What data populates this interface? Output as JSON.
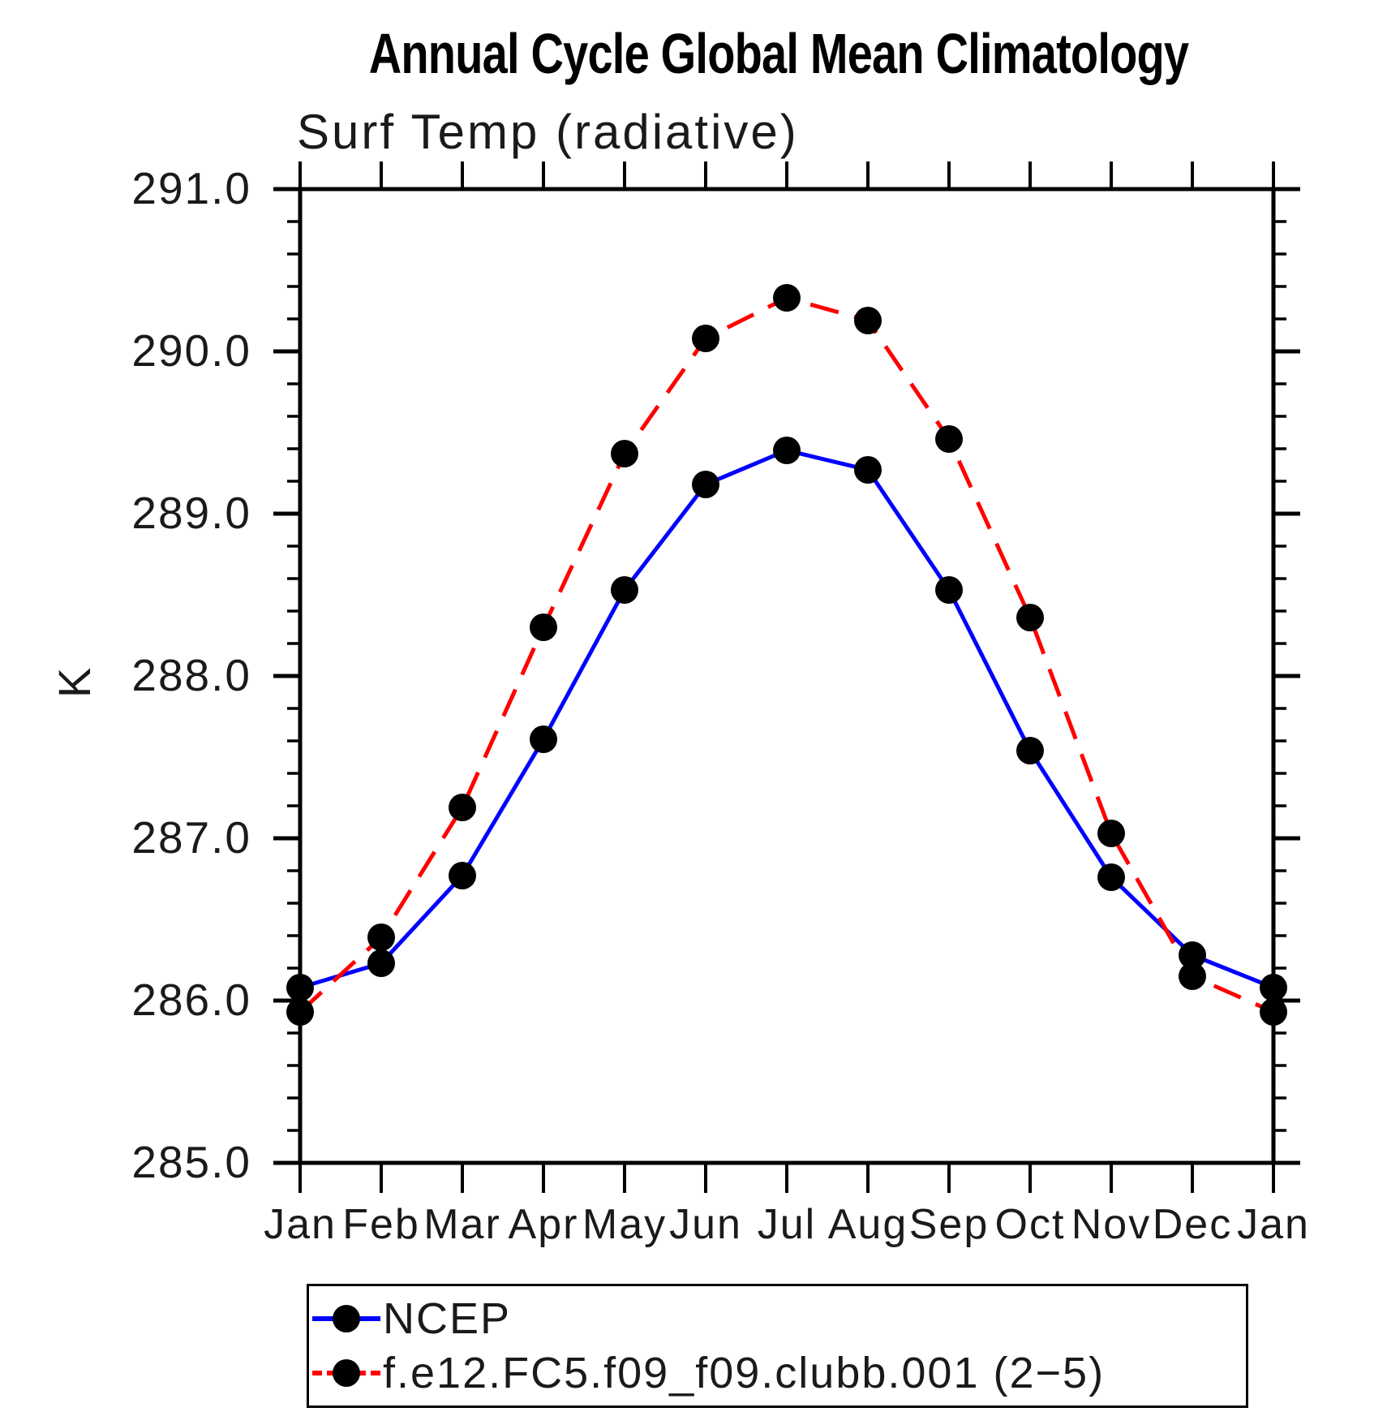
{
  "chart_data": {
    "type": "line",
    "title": "Annual Cycle Global Mean Climatology",
    "subtitle": "Surf Temp (radiative)",
    "ylabel": "K",
    "x_categories": [
      "Jan",
      "Feb",
      "Mar",
      "Apr",
      "May",
      "Jun",
      "Jul",
      "Aug",
      "Sep",
      "Oct",
      "Nov",
      "Dec",
      "Jan"
    ],
    "ylim": [
      285.0,
      291.0
    ],
    "y_major_step": 1.0,
    "y_minor_step": 0.2,
    "y_tick_labels": [
      "291.0",
      "290.0",
      "289.0",
      "288.0",
      "287.0",
      "286.0",
      "285.0"
    ],
    "grid": false,
    "frame": "box-with-outward-ticks",
    "legend_position": "bottom-left-box",
    "axis_color": "#000000",
    "marker_color": "#000000",
    "series": [
      {
        "name": "NCEP",
        "color": "#0000ff",
        "line_style": "solid",
        "marker": "filled-circle",
        "values": [
          286.08,
          286.23,
          286.77,
          287.61,
          288.53,
          289.18,
          289.39,
          289.27,
          288.53,
          287.54,
          286.76,
          286.28,
          286.08
        ]
      },
      {
        "name": "f.e12.FC5.f09_f09.clubb.001 (2−5)",
        "color": "#ff0000",
        "line_style": "dashed",
        "marker": "filled-circle",
        "values": [
          285.93,
          286.39,
          287.19,
          288.3,
          289.37,
          290.08,
          290.33,
          290.19,
          289.46,
          288.36,
          287.03,
          286.15,
          285.93
        ]
      }
    ]
  }
}
